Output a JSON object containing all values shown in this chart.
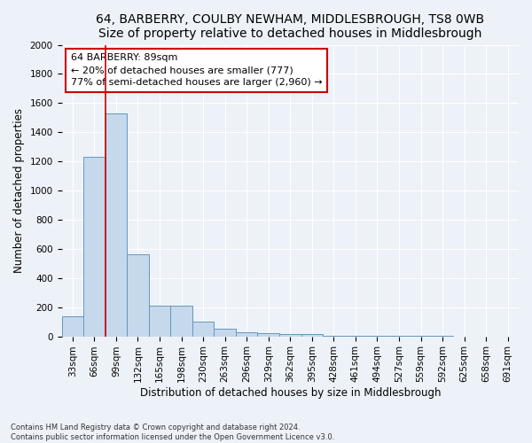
{
  "title_line1": "64, BARBERRY, COULBY NEWHAM, MIDDLESBROUGH, TS8 0WB",
  "title_line2": "Size of property relative to detached houses in Middlesbrough",
  "xlabel": "Distribution of detached houses by size in Middlesbrough",
  "ylabel": "Number of detached properties",
  "footnote": "Contains HM Land Registry data © Crown copyright and database right 2024.\nContains public sector information licensed under the Open Government Licence v3.0.",
  "bar_labels": [
    "33sqm",
    "66sqm",
    "99sqm",
    "132sqm",
    "165sqm",
    "198sqm",
    "230sqm",
    "263sqm",
    "296sqm",
    "329sqm",
    "362sqm",
    "395sqm",
    "428sqm",
    "461sqm",
    "494sqm",
    "527sqm",
    "559sqm",
    "592sqm",
    "625sqm",
    "658sqm",
    "691sqm"
  ],
  "bar_values": [
    140,
    1230,
    1530,
    560,
    210,
    210,
    100,
    50,
    30,
    20,
    15,
    15,
    5,
    3,
    2,
    1,
    1,
    1,
    0,
    0,
    0
  ],
  "bar_color": "#c5d8ec",
  "bar_edge_color": "#6699bb",
  "vline_color": "#cc0000",
  "annotation_text": "64 BARBERRY: 89sqm\n← 20% of detached houses are smaller (777)\n77% of semi-detached houses are larger (2,960) →",
  "annotation_box_facecolor": "#ffffff",
  "annotation_box_edge_color": "#cc0000",
  "ylim": [
    0,
    2000
  ],
  "yticks": [
    0,
    200,
    400,
    600,
    800,
    1000,
    1200,
    1400,
    1600,
    1800,
    2000
  ],
  "background_color": "#edf2f8",
  "grid_color": "#ffffff",
  "title_fontsize": 10,
  "axis_label_fontsize": 8.5,
  "tick_fontsize": 7.5,
  "annotation_fontsize": 8,
  "footnote_fontsize": 6
}
